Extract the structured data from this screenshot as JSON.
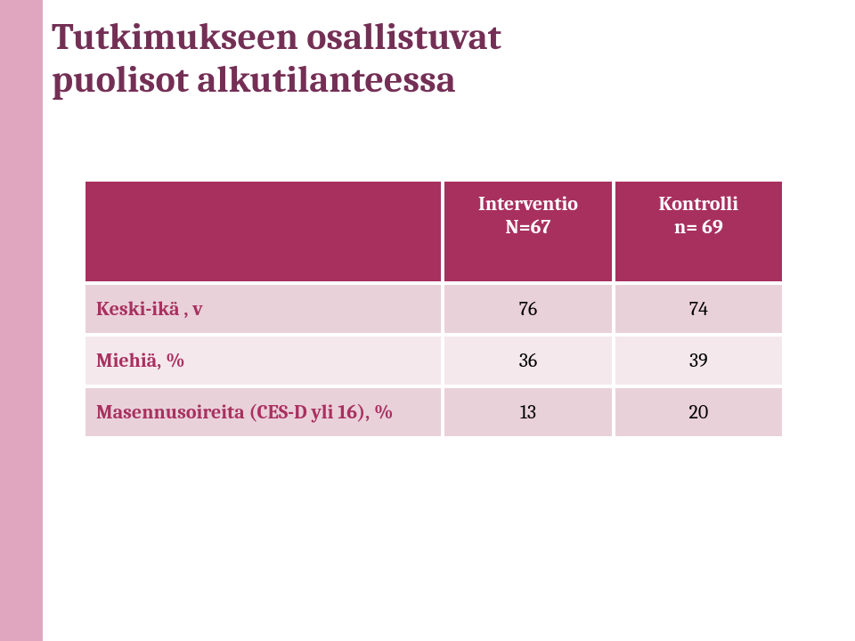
{
  "colors": {
    "sidebar": "#e0a6bf",
    "title": "#742f55",
    "header_bg": "#a8305f",
    "header_text": "#ffffff",
    "row_even_bg": "#e9d1d9",
    "row_odd_bg": "#f4e8ec",
    "row_text": "#000000",
    "label_text": "#a8305f"
  },
  "title": {
    "line1": "Tutkimukseen osallistuvat",
    "line2": "puolisot alkutilanteessa",
    "fontsize": 42
  },
  "table": {
    "header_fontsize": 22,
    "body_fontsize": 22,
    "columns": [
      {
        "line1": "Interventio",
        "line2": "N=67"
      },
      {
        "line1": "Kontrolli",
        "line2": "n= 69"
      }
    ],
    "rows": [
      {
        "label": "Keski-ikä , v",
        "vals": [
          "76",
          "74"
        ]
      },
      {
        "label": "Miehiä, %",
        "vals": [
          "36",
          "39"
        ]
      },
      {
        "label": "Masennusoireita (CES-D yli 16), %",
        "vals": [
          "13",
          "20"
        ]
      }
    ]
  }
}
